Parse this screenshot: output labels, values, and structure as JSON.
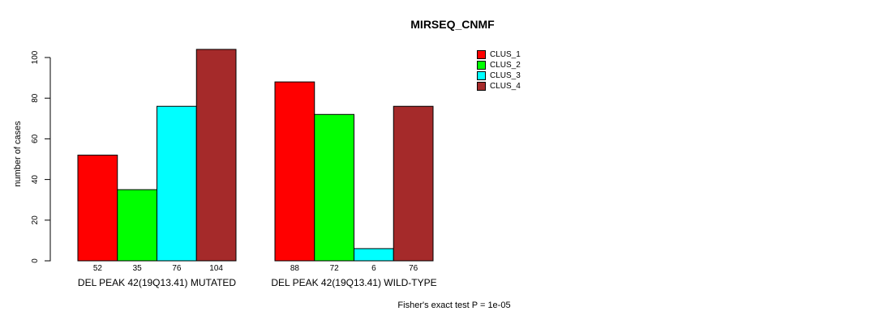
{
  "title": "MIRSEQ_CNMF",
  "chart_data": {
    "type": "bar",
    "title": "MIRSEQ_CNMF",
    "xlabel": "",
    "ylabel": "number of cases",
    "ylim": [
      0,
      100
    ],
    "yticks": [
      0,
      20,
      40,
      60,
      80,
      100
    ],
    "grid": false,
    "legend_position": "top-right",
    "groups": [
      "DEL PEAK 42(19Q13.41) MUTATED",
      "DEL PEAK 42(19Q13.41) WILD-TYPE"
    ],
    "series": [
      {
        "name": "CLUS_1",
        "color": "#ff0000",
        "values": [
          52,
          88
        ]
      },
      {
        "name": "CLUS_2",
        "color": "#00ff00",
        "values": [
          35,
          72
        ]
      },
      {
        "name": "CLUS_3",
        "color": "#00ffff",
        "values": [
          76,
          6
        ]
      },
      {
        "name": "CLUS_4",
        "color": "#a52a2a",
        "values": [
          104,
          76
        ]
      }
    ],
    "bar_value_labels": [
      [
        "52",
        "35",
        "76",
        "104"
      ],
      [
        "88",
        "72",
        "6",
        "76"
      ]
    ],
    "annotation": "Fisher's exact test P = 1e-05"
  }
}
